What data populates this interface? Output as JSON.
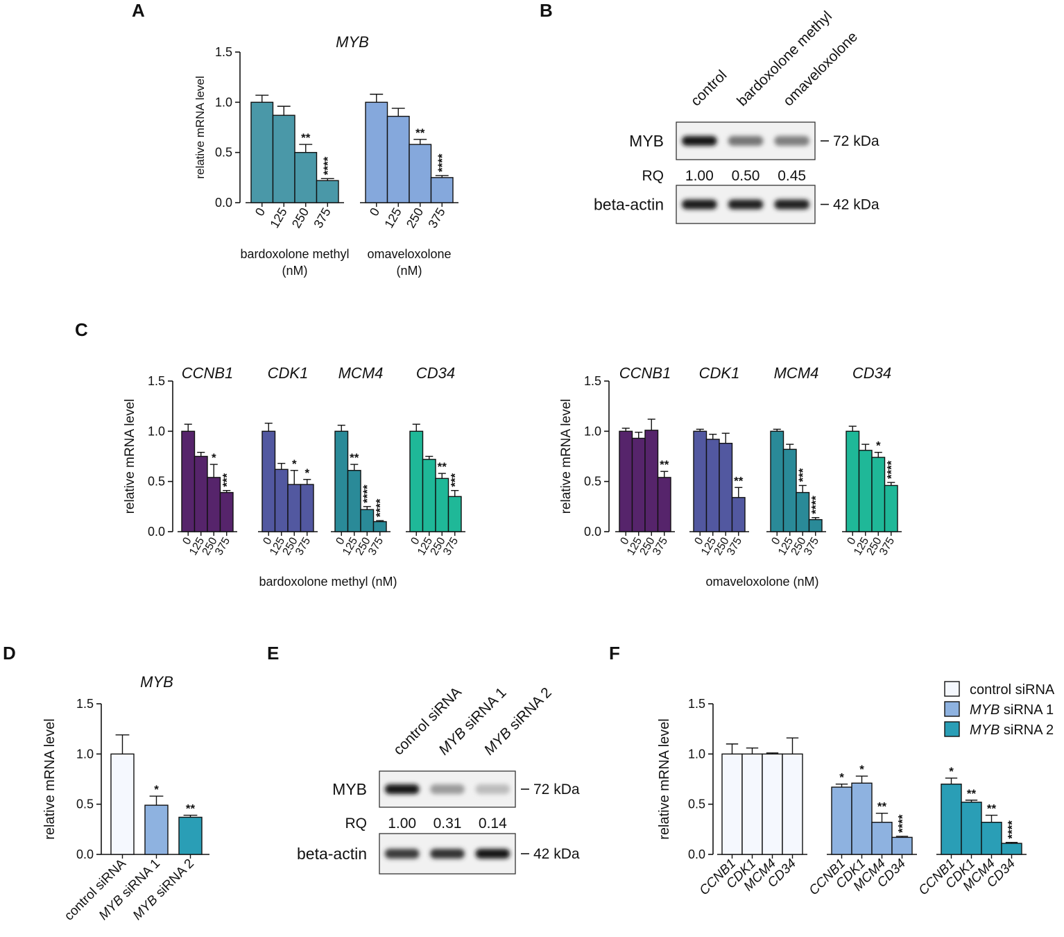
{
  "figure": {
    "panel_letters": [
      "A",
      "B",
      "C",
      "D",
      "E",
      "F"
    ]
  },
  "colors": {
    "bardoxolone": "#4a98a8",
    "omaveloxolone": "#85a8dc",
    "ccnb1": "#56246b",
    "cdk1": "#5258a0",
    "mcm4": "#2a8a98",
    "cd34": "#1fb898",
    "control_sirna": "#f5f8fe",
    "myb_sirna1": "#8eb2e0",
    "myb_sirna2": "#2a9eb6"
  },
  "chart_data": [
    {
      "panel": "A",
      "type": "bar",
      "title": "MYB",
      "ylabel": "relative mRNA level",
      "ylim": [
        0,
        1.5
      ],
      "yticks": [
        "0.0",
        "0.5",
        "1.0",
        "1.5"
      ],
      "groups": [
        {
          "name": "bardoxolone methyl",
          "unit": "(nM)",
          "color_key": "bardoxolone",
          "categories": [
            "0",
            "125",
            "250",
            "375"
          ],
          "values": [
            1.0,
            0.87,
            0.5,
            0.22
          ],
          "errors": [
            0.07,
            0.09,
            0.08,
            0.02
          ],
          "significance": [
            "",
            "",
            "**",
            "****"
          ]
        },
        {
          "name": "omaveloxolone",
          "unit": "(nM)",
          "color_key": "omaveloxolone",
          "categories": [
            "0",
            "125",
            "250",
            "375"
          ],
          "values": [
            1.0,
            0.86,
            0.58,
            0.25
          ],
          "errors": [
            0.08,
            0.08,
            0.05,
            0.02
          ],
          "significance": [
            "",
            "",
            "**",
            "****"
          ]
        }
      ]
    },
    {
      "panel": "C-left",
      "type": "bar",
      "ylabel": "relative mRNA level",
      "xlabel": "bardoxolone methyl (nM)",
      "ylim": [
        0,
        1.5
      ],
      "yticks": [
        "0.0",
        "0.5",
        "1.0",
        "1.5"
      ],
      "groups": [
        {
          "name": "CCNB1",
          "color_key": "ccnb1",
          "categories": [
            "0",
            "125",
            "250",
            "375"
          ],
          "values": [
            1.0,
            0.75,
            0.54,
            0.39
          ],
          "errors": [
            0.07,
            0.04,
            0.13,
            0.02
          ],
          "significance": [
            "",
            "",
            "*",
            "***"
          ]
        },
        {
          "name": "CDK1",
          "color_key": "cdk1",
          "categories": [
            "0",
            "125",
            "250",
            "375"
          ],
          "values": [
            1.0,
            0.62,
            0.47,
            0.47
          ],
          "errors": [
            0.08,
            0.06,
            0.14,
            0.05
          ],
          "significance": [
            "",
            "",
            "*",
            "*"
          ]
        },
        {
          "name": "MCM4",
          "color_key": "mcm4",
          "categories": [
            "0",
            "125",
            "250",
            "375"
          ],
          "values": [
            1.0,
            0.61,
            0.22,
            0.1
          ],
          "errors": [
            0.06,
            0.06,
            0.03,
            0.01
          ],
          "significance": [
            "",
            "**",
            "****",
            "****"
          ]
        },
        {
          "name": "CD34",
          "color_key": "cd34",
          "categories": [
            "0",
            "125",
            "250",
            "375"
          ],
          "values": [
            1.0,
            0.72,
            0.53,
            0.35
          ],
          "errors": [
            0.07,
            0.03,
            0.05,
            0.06
          ],
          "significance": [
            "",
            "",
            "**",
            "***"
          ]
        }
      ]
    },
    {
      "panel": "C-right",
      "type": "bar",
      "ylabel": "relative mRNA level",
      "xlabel": "omaveloxolone (nM)",
      "ylim": [
        0,
        1.5
      ],
      "yticks": [
        "0.0",
        "0.5",
        "1.0",
        "1.5"
      ],
      "groups": [
        {
          "name": "CCNB1",
          "color_key": "ccnb1",
          "categories": [
            "0",
            "125",
            "250",
            "375"
          ],
          "values": [
            1.0,
            0.93,
            1.01,
            0.54
          ],
          "errors": [
            0.03,
            0.06,
            0.11,
            0.06
          ],
          "significance": [
            "",
            "",
            "",
            "**"
          ]
        },
        {
          "name": "CDK1",
          "color_key": "cdk1",
          "categories": [
            "0",
            "125",
            "250",
            "375"
          ],
          "values": [
            1.0,
            0.92,
            0.88,
            0.34
          ],
          "errors": [
            0.02,
            0.05,
            0.1,
            0.1
          ],
          "significance": [
            "",
            "",
            "",
            "**"
          ]
        },
        {
          "name": "MCM4",
          "color_key": "mcm4",
          "categories": [
            "0",
            "125",
            "250",
            "375"
          ],
          "values": [
            1.0,
            0.82,
            0.39,
            0.12
          ],
          "errors": [
            0.02,
            0.05,
            0.07,
            0.02
          ],
          "significance": [
            "",
            "",
            "***",
            "****"
          ]
        },
        {
          "name": "CD34",
          "color_key": "cd34",
          "categories": [
            "0",
            "125",
            "250",
            "375"
          ],
          "values": [
            1.0,
            0.81,
            0.74,
            0.46
          ],
          "errors": [
            0.05,
            0.06,
            0.05,
            0.03
          ],
          "significance": [
            "",
            "",
            "*",
            "****"
          ]
        }
      ]
    },
    {
      "panel": "D",
      "type": "bar",
      "title": "MYB",
      "ylabel": "relative mRNA level",
      "ylim": [
        0,
        1.5
      ],
      "yticks": [
        "0.0",
        "0.5",
        "1.0",
        "1.5"
      ],
      "categories": [
        "control siRNA",
        "MYB siRNA 1",
        "MYB siRNA 2"
      ],
      "color_keys": [
        "control_sirna",
        "myb_sirna1",
        "myb_sirna2"
      ],
      "values": [
        1.0,
        0.49,
        0.37
      ],
      "errors": [
        0.19,
        0.09,
        0.02
      ],
      "significance": [
        "",
        "*",
        "**"
      ]
    },
    {
      "panel": "F",
      "type": "bar",
      "ylabel": "relative mRNA level",
      "ylim": [
        0,
        1.5
      ],
      "yticks": [
        "0.0",
        "0.5",
        "1.0",
        "1.5"
      ],
      "categories": [
        "CCNB1",
        "CDK1",
        "MCM4",
        "CD34"
      ],
      "series": [
        {
          "name": "control siRNA",
          "color_key": "control_sirna",
          "values": [
            1.0,
            1.0,
            1.0,
            1.0
          ],
          "errors": [
            0.1,
            0.06,
            0.01,
            0.16
          ],
          "significance": [
            "",
            "",
            "",
            ""
          ]
        },
        {
          "name": "MYB siRNA 1",
          "color_key": "myb_sirna1",
          "values": [
            0.67,
            0.71,
            0.32,
            0.17
          ],
          "errors": [
            0.03,
            0.07,
            0.09,
            0.01
          ],
          "significance": [
            "*",
            "*",
            "**",
            "****"
          ]
        },
        {
          "name": "MYB siRNA 2",
          "color_key": "myb_sirna2",
          "values": [
            0.7,
            0.52,
            0.32,
            0.11
          ],
          "errors": [
            0.06,
            0.02,
            0.07,
            0.01
          ],
          "significance": [
            "*",
            "**",
            "**",
            "****"
          ]
        }
      ],
      "legend": {
        "position": "top-right",
        "entries": [
          {
            "italic": "",
            "text": "control siRNA",
            "color_key": "control_sirna"
          },
          {
            "italic": "MYB",
            "text": " siRNA 1",
            "color_key": "myb_sirna1"
          },
          {
            "italic": "MYB",
            "text": " siRNA 2",
            "color_key": "myb_sirna2"
          }
        ]
      }
    }
  ],
  "blots": [
    {
      "panel": "B",
      "lanes": [
        "control",
        "bardoxolone methyl",
        "omaveloxolone"
      ],
      "target": {
        "label": "MYB",
        "marker": "72 kDa",
        "intensity": [
          1.0,
          0.5,
          0.45
        ]
      },
      "rq": {
        "label": "RQ",
        "values": [
          "1.00",
          "0.50",
          "0.45"
        ]
      },
      "loading": {
        "label": "beta-actin",
        "marker": "42 kDa",
        "intensity": [
          0.95,
          0.92,
          0.94
        ]
      }
    },
    {
      "panel": "E",
      "lanes": [
        {
          "italic": "",
          "text": "control siRNA"
        },
        {
          "italic": "MYB",
          "text": " siRNA 1"
        },
        {
          "italic": "MYB",
          "text": " siRNA 2"
        }
      ],
      "target": {
        "label": "MYB",
        "marker": "72 kDa",
        "intensity": [
          1.0,
          0.31,
          0.14
        ]
      },
      "rq": {
        "label": "RQ",
        "values": [
          "1.00",
          "0.31",
          "0.14"
        ]
      },
      "loading": {
        "label": "beta-actin",
        "marker": "42 kDa",
        "intensity": [
          0.8,
          0.85,
          1.0
        ]
      }
    }
  ]
}
